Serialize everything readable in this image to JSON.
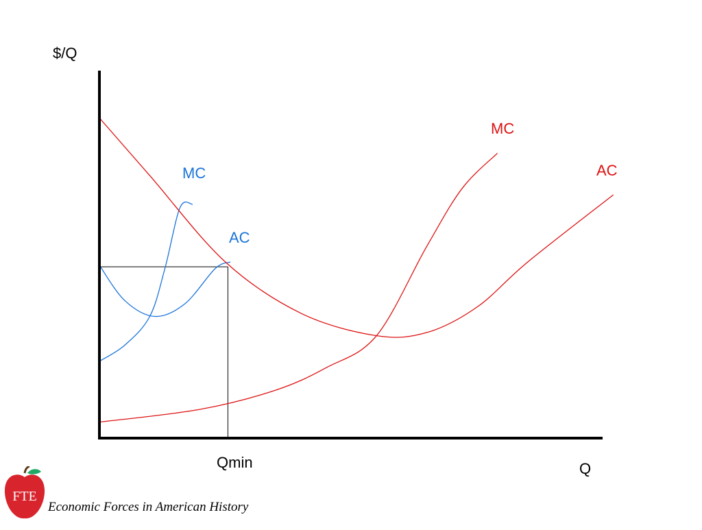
{
  "chart_data": {
    "type": "line",
    "title": "",
    "xlabel": "Q",
    "ylabel": "$/Q",
    "xlim": [
      0,
      100
    ],
    "ylim": [
      0,
      100
    ],
    "grid": false,
    "legend": "none",
    "series": [
      {
        "name": "MC",
        "color": "#1a73d9",
        "x": [
          0,
          5,
          10,
          13,
          16,
          18.5
        ],
        "y": [
          24,
          29,
          38,
          53,
          72,
          73
        ]
      },
      {
        "name": "AC",
        "color": "#1a73d9",
        "x": [
          0,
          5,
          11,
          17,
          23,
          26
        ],
        "y": [
          54,
          43,
          38,
          42,
          53,
          55
        ]
      },
      {
        "name": "MC",
        "color": "#dd1111",
        "x": [
          0,
          20,
          35,
          45,
          55,
          65,
          72,
          79
        ],
        "y": [
          5,
          9,
          15,
          22,
          32,
          60,
          78,
          89
        ]
      },
      {
        "name": "AC",
        "color": "#dd1111",
        "x": [
          0,
          10,
          25,
          40,
          55,
          65,
          75,
          85,
          102
        ],
        "y": [
          100,
          82,
          55,
          39,
          32,
          33,
          41,
          55,
          76
        ]
      }
    ],
    "guides": [
      {
        "label": "Qmin",
        "x": 25.5,
        "y": 53.5
      }
    ],
    "x_tick_labels": [
      "Qmin"
    ]
  },
  "footer": {
    "logo_text": "FTE",
    "source_text": "Economic Forces in American History"
  }
}
